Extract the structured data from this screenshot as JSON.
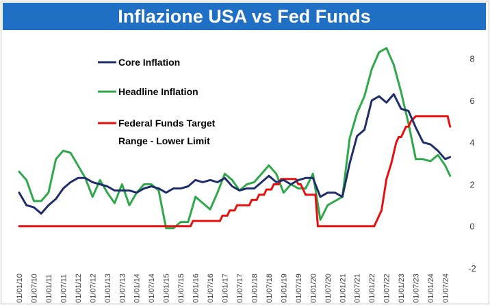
{
  "title": "Inflazione USA vs Fed Funds",
  "chart_data": {
    "type": "line",
    "title": "Inflazione USA vs Fed Funds",
    "xlabel": "",
    "ylabel": "",
    "ylim": [
      -2,
      9
    ],
    "y_ticks": [
      "-2",
      "0",
      "2",
      "4",
      "6",
      "8"
    ],
    "x_tick_labels": [
      "01/01/10",
      "01/07/10",
      "01/01/11",
      "01/07/11",
      "01/01/12",
      "01/07/12",
      "01/01/13",
      "01/07/13",
      "01/01/14",
      "01/07/14",
      "01/01/15",
      "01/07/15",
      "01/01/16",
      "01/07/16",
      "01/01/17",
      "01/07/17",
      "01/01/18",
      "01/07/18",
      "01/01/19",
      "01/07/19",
      "01/01/20",
      "01/07/20",
      "01/01/21",
      "01/07/21",
      "01/01/22",
      "01/07/22",
      "01/01/23",
      "01/07/23",
      "01/01/24",
      "01/07/24"
    ],
    "grid": false,
    "legend_position": "top-left",
    "series": [
      {
        "name": "Core Inflation",
        "color": "#1f2d6b",
        "x": [
          "2010-01",
          "2010-04",
          "2010-07",
          "2010-10",
          "2011-01",
          "2011-04",
          "2011-07",
          "2011-10",
          "2012-01",
          "2012-04",
          "2012-07",
          "2012-10",
          "2013-01",
          "2013-04",
          "2013-07",
          "2013-10",
          "2014-01",
          "2014-04",
          "2014-07",
          "2014-10",
          "2015-01",
          "2015-04",
          "2015-07",
          "2015-10",
          "2016-01",
          "2016-04",
          "2016-07",
          "2016-10",
          "2017-01",
          "2017-04",
          "2017-07",
          "2017-10",
          "2018-01",
          "2018-04",
          "2018-07",
          "2018-10",
          "2019-01",
          "2019-04",
          "2019-07",
          "2019-10",
          "2020-01",
          "2020-04",
          "2020-07",
          "2020-10",
          "2021-01",
          "2021-04",
          "2021-07",
          "2021-10",
          "2022-01",
          "2022-04",
          "2022-07",
          "2022-10",
          "2023-01",
          "2023-04",
          "2023-07",
          "2023-10",
          "2024-01",
          "2024-04",
          "2024-07",
          "2024-09"
        ],
        "values": [
          1.6,
          1.0,
          0.9,
          0.6,
          1.0,
          1.3,
          1.8,
          2.1,
          2.3,
          2.3,
          2.1,
          2.0,
          1.9,
          1.7,
          1.7,
          1.7,
          1.6,
          1.8,
          1.9,
          1.8,
          1.6,
          1.8,
          1.8,
          1.9,
          2.2,
          2.1,
          2.2,
          2.1,
          2.3,
          1.9,
          1.7,
          1.8,
          1.8,
          2.1,
          2.4,
          2.1,
          2.2,
          2.0,
          2.2,
          2.3,
          2.3,
          1.4,
          1.6,
          1.6,
          1.4,
          3.0,
          4.3,
          4.6,
          6.0,
          6.2,
          5.9,
          6.3,
          5.6,
          5.5,
          4.7,
          4.0,
          3.9,
          3.6,
          3.2,
          3.3
        ]
      },
      {
        "name": "Headline Inflation",
        "color": "#2ea84a",
        "x": [
          "2010-01",
          "2010-04",
          "2010-07",
          "2010-10",
          "2011-01",
          "2011-04",
          "2011-07",
          "2011-10",
          "2012-01",
          "2012-04",
          "2012-07",
          "2012-10",
          "2013-01",
          "2013-04",
          "2013-07",
          "2013-10",
          "2014-01",
          "2014-04",
          "2014-07",
          "2014-10",
          "2015-01",
          "2015-04",
          "2015-07",
          "2015-10",
          "2016-01",
          "2016-04",
          "2016-07",
          "2016-10",
          "2017-01",
          "2017-04",
          "2017-07",
          "2017-10",
          "2018-01",
          "2018-04",
          "2018-07",
          "2018-10",
          "2019-01",
          "2019-04",
          "2019-07",
          "2019-10",
          "2020-01",
          "2020-04",
          "2020-07",
          "2020-10",
          "2021-01",
          "2021-04",
          "2021-07",
          "2021-10",
          "2022-01",
          "2022-04",
          "2022-07",
          "2022-10",
          "2023-01",
          "2023-04",
          "2023-07",
          "2023-10",
          "2024-01",
          "2024-04",
          "2024-07",
          "2024-09"
        ],
        "values": [
          2.6,
          2.2,
          1.2,
          1.2,
          1.6,
          3.2,
          3.6,
          3.5,
          2.9,
          2.3,
          1.4,
          2.2,
          1.6,
          1.1,
          2.0,
          1.0,
          1.6,
          2.0,
          2.0,
          1.7,
          -0.1,
          -0.1,
          0.2,
          0.2,
          1.4,
          1.1,
          0.8,
          1.6,
          2.5,
          2.2,
          1.7,
          2.0,
          2.1,
          2.5,
          2.9,
          2.5,
          1.6,
          2.0,
          1.8,
          1.8,
          2.5,
          0.3,
          1.0,
          1.2,
          1.4,
          4.2,
          5.4,
          6.2,
          7.5,
          8.3,
          8.5,
          7.7,
          6.4,
          4.9,
          3.2,
          3.2,
          3.1,
          3.4,
          2.9,
          2.4
        ]
      },
      {
        "name": "Federal Funds Target Range - Lower Limit",
        "color": "#e8100f",
        "x": [
          "2010-01",
          "2015-11",
          "2015-12",
          "2016-11",
          "2016-12",
          "2017-02",
          "2017-03",
          "2017-05",
          "2017-06",
          "2017-11",
          "2017-12",
          "2018-02",
          "2018-03",
          "2018-05",
          "2018-06",
          "2018-08",
          "2018-09",
          "2018-11",
          "2018-12",
          "2019-06",
          "2019-07",
          "2019-08",
          "2019-09",
          "2019-10",
          "2019-11",
          "2020-02",
          "2020-03",
          "2022-02",
          "2022-03",
          "2022-04",
          "2022-05",
          "2022-06",
          "2022-07",
          "2022-09",
          "2022-10",
          "2022-11",
          "2022-12",
          "2023-01",
          "2023-02",
          "2023-03",
          "2023-04",
          "2023-05",
          "2023-07",
          "2024-08",
          "2024-09"
        ],
        "values": [
          0,
          0,
          0.25,
          0.25,
          0.5,
          0.5,
          0.75,
          0.75,
          1.0,
          1.0,
          1.25,
          1.25,
          1.5,
          1.5,
          1.75,
          1.75,
          2.0,
          2.0,
          2.25,
          2.25,
          2.0,
          2.0,
          1.75,
          1.5,
          1.5,
          1.5,
          0,
          0,
          0.25,
          0.5,
          0.75,
          1.5,
          2.25,
          3.0,
          3.5,
          4.0,
          4.25,
          4.25,
          4.5,
          4.75,
          4.75,
          5.0,
          5.25,
          5.25,
          4.75
        ]
      }
    ]
  }
}
